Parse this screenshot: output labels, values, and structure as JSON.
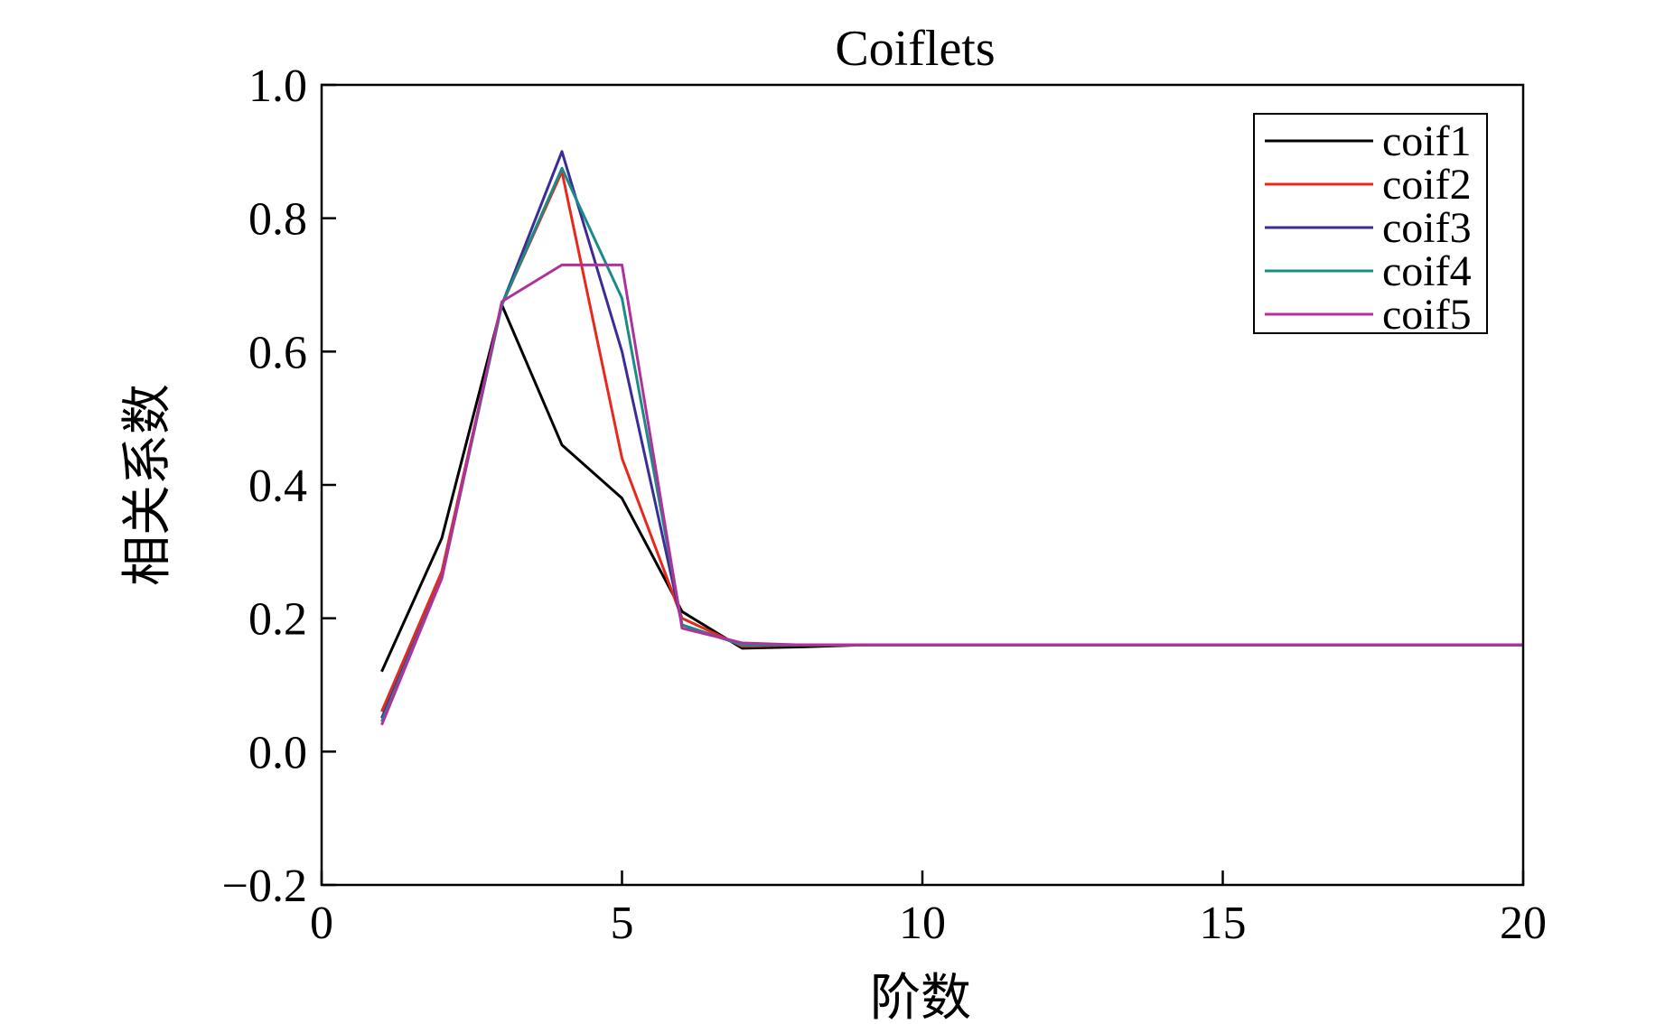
{
  "chart_data": {
    "type": "line",
    "title": "Coiflets",
    "xlabel": "阶数",
    "ylabel": "相关系数",
    "xlim": [
      0,
      20
    ],
    "ylim": [
      -0.2,
      1.0
    ],
    "xticks": [
      0,
      5,
      10,
      15,
      20
    ],
    "xtick_labels": [
      "0",
      "5",
      "10",
      "15",
      "20"
    ],
    "yticks": [
      -0.2,
      0.0,
      0.2,
      0.4,
      0.6,
      0.8,
      1.0
    ],
    "ytick_labels": [
      "−0.2",
      "0.0",
      "0.2",
      "0.4",
      "0.6",
      "0.8",
      "1.0"
    ],
    "grid": false,
    "legend_position": "top-right",
    "series": [
      {
        "name": "coif1",
        "color": "#000000",
        "x": [
          1,
          2,
          3,
          4,
          5,
          6,
          7,
          8,
          9,
          10,
          11,
          12,
          13,
          14,
          15,
          16,
          17,
          18,
          19,
          20
        ],
        "y": [
          0.12,
          0.32,
          0.67,
          0.46,
          0.38,
          0.21,
          0.155,
          0.157,
          0.16,
          0.16,
          0.16,
          0.16,
          0.16,
          0.16,
          0.16,
          0.16,
          0.16,
          0.16,
          0.16,
          0.16
        ]
      },
      {
        "name": "coif2",
        "color": "#e8281c",
        "x": [
          1,
          2,
          3,
          4,
          5,
          6,
          7,
          8,
          9,
          10,
          11,
          12,
          13,
          14,
          15,
          16,
          17,
          18,
          19,
          20
        ],
        "y": [
          0.06,
          0.27,
          0.67,
          0.87,
          0.44,
          0.2,
          0.158,
          0.16,
          0.16,
          0.16,
          0.16,
          0.16,
          0.16,
          0.16,
          0.16,
          0.16,
          0.16,
          0.16,
          0.16,
          0.16
        ]
      },
      {
        "name": "coif3",
        "color": "#3a2d94",
        "x": [
          1,
          2,
          3,
          4,
          5,
          6,
          7,
          8,
          9,
          10,
          11,
          12,
          13,
          14,
          15,
          16,
          17,
          18,
          19,
          20
        ],
        "y": [
          0.05,
          0.26,
          0.67,
          0.9,
          0.6,
          0.19,
          0.16,
          0.16,
          0.16,
          0.16,
          0.16,
          0.16,
          0.16,
          0.16,
          0.16,
          0.16,
          0.16,
          0.16,
          0.16,
          0.16
        ]
      },
      {
        "name": "coif4",
        "color": "#1a8c86",
        "x": [
          1,
          2,
          3,
          4,
          5,
          6,
          7,
          8,
          9,
          10,
          11,
          12,
          13,
          14,
          15,
          16,
          17,
          18,
          19,
          20
        ],
        "y": [
          0.045,
          0.26,
          0.67,
          0.875,
          0.68,
          0.19,
          0.16,
          0.16,
          0.16,
          0.16,
          0.16,
          0.16,
          0.16,
          0.16,
          0.16,
          0.16,
          0.16,
          0.16,
          0.16,
          0.16
        ]
      },
      {
        "name": "coif5",
        "color": "#b0309c",
        "x": [
          1,
          2,
          3,
          4,
          5,
          6,
          7,
          8,
          9,
          10,
          11,
          12,
          13,
          14,
          15,
          16,
          17,
          18,
          19,
          20
        ],
        "y": [
          0.04,
          0.26,
          0.675,
          0.73,
          0.73,
          0.185,
          0.163,
          0.16,
          0.16,
          0.16,
          0.16,
          0.16,
          0.16,
          0.16,
          0.16,
          0.16,
          0.16,
          0.16,
          0.16,
          0.16
        ]
      }
    ]
  }
}
